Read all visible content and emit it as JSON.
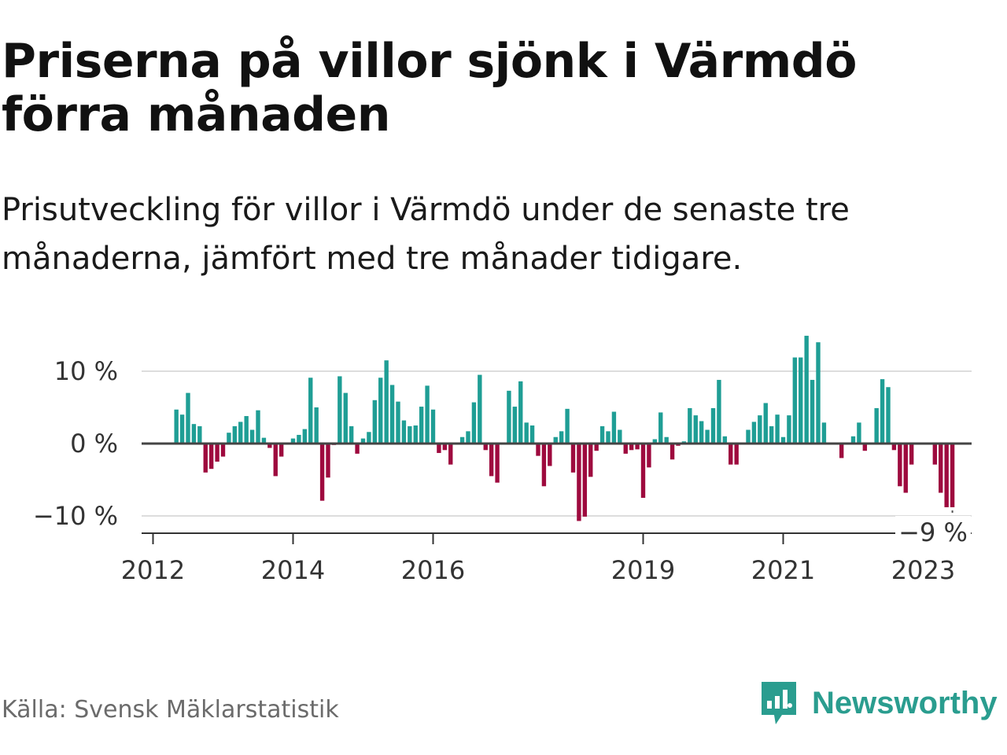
{
  "title": "Priserna på villor sjönk i Värmdö förra månaden",
  "subtitle": "Prisutveckling för villor i Värmdö under de senaste tre månaderna, jämfört med tre månader tidigare.",
  "source": "Källa: Svensk Mäklarstatistik",
  "brand": {
    "name": "Newsworthy",
    "icon": "newsworthy-logo-icon",
    "color": "#2a9d8f"
  },
  "colors": {
    "positive": "#1f9e95",
    "negative": "#9e0a3e",
    "zero_line": "#444444",
    "grid": "#dddddd"
  },
  "chart_data": {
    "type": "bar",
    "start": {
      "year": 2012,
      "month": 5
    },
    "frequency": "monthly",
    "ylabel": "",
    "xlabel": "",
    "ylim": [
      -12.5,
      15
    ],
    "y_ticks": [
      {
        "value": 10,
        "label": "10 %"
      },
      {
        "value": 0,
        "label": "0 %"
      },
      {
        "value": -10,
        "label": "−10 %"
      }
    ],
    "x_ticks": [
      {
        "year": 2012,
        "label": "2012"
      },
      {
        "year": 2014,
        "label": "2014"
      },
      {
        "year": 2016,
        "label": "2016"
      },
      {
        "year": 2019,
        "label": "2019"
      },
      {
        "year": 2021,
        "label": "2021"
      },
      {
        "year": 2023,
        "label": "2023"
      }
    ],
    "grid": true,
    "values": [
      4.7,
      4.0,
      7.0,
      2.7,
      2.4,
      -4.0,
      -3.5,
      -2.5,
      -1.8,
      1.5,
      2.4,
      3.0,
      3.8,
      1.9,
      4.6,
      0.8,
      -0.6,
      -4.5,
      -1.8,
      0.0,
      0.7,
      1.2,
      2.0,
      9.1,
      5.0,
      -7.9,
      -4.7,
      -0.2,
      9.3,
      7.0,
      2.4,
      -1.4,
      0.7,
      1.6,
      6.0,
      9.1,
      11.5,
      8.1,
      5.8,
      3.2,
      2.4,
      2.5,
      5.1,
      8.0,
      4.7,
      -1.3,
      -0.9,
      -2.9,
      0.0,
      0.9,
      1.7,
      5.7,
      9.5,
      -0.9,
      -4.5,
      -5.4,
      0.0,
      7.3,
      5.1,
      8.6,
      2.9,
      2.5,
      -1.7,
      -5.9,
      -3.1,
      0.9,
      1.7,
      4.8,
      -4.0,
      -10.7,
      -10.1,
      -4.6,
      -1.0,
      2.4,
      1.7,
      4.4,
      1.9,
      -1.4,
      -0.9,
      -0.8,
      -7.5,
      -3.3,
      0.6,
      4.3,
      0.9,
      -2.2,
      -0.3,
      0.3,
      4.9,
      3.9,
      3.1,
      1.9,
      4.9,
      8.8,
      1.0,
      -2.9,
      -2.9,
      0.0,
      1.9,
      3.0,
      3.9,
      5.6,
      2.4,
      4.0,
      0.9,
      3.9,
      11.9,
      11.9,
      14.9,
      8.8,
      14.0,
      2.9,
      0.0,
      0.0,
      -2.0,
      0.0,
      1.0,
      2.9,
      -1.0,
      0.0,
      4.9,
      8.9,
      7.8,
      -0.9,
      -5.9,
      -6.8,
      -2.9,
      0.0,
      0.0,
      0.0,
      -2.9,
      -6.8,
      -8.8,
      -8.8
    ],
    "annotation": {
      "label": "−9 %",
      "value": -9,
      "target": "last"
    }
  }
}
